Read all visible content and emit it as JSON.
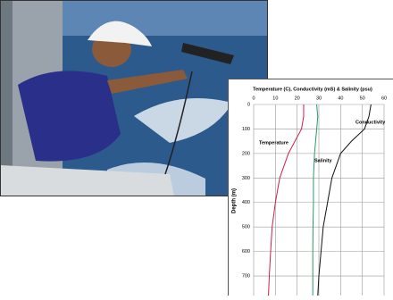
{
  "chart_data": {
    "type": "line",
    "title": "Temperature (C), Conductivity (mS) & Salinity (psu)",
    "y_label": "Depth (m)",
    "depth": [
      0,
      50,
      100,
      150,
      200,
      300,
      400,
      500,
      600,
      700,
      780
    ],
    "series": [
      {
        "name": "Temperature",
        "color": "#d0204a",
        "values": [
          23,
          23,
          22,
          19,
          16,
          12,
          10,
          8.5,
          7.8,
          7.2,
          6.8
        ]
      },
      {
        "name": "Salinity",
        "color": "#2a9a6a",
        "values": [
          29,
          29.5,
          29,
          28.5,
          28,
          27.5,
          27.5,
          27.3,
          27.2,
          27.2,
          27.2
        ]
      },
      {
        "name": "Conductivity",
        "color": "#111111",
        "values": [
          54,
          53,
          51,
          45,
          40,
          36,
          34,
          32,
          31,
          30,
          29.5
        ]
      }
    ],
    "xlim": [
      0,
      60
    ],
    "xticks": [
      0,
      10,
      20,
      30,
      40,
      50,
      60
    ],
    "ylim": [
      0,
      780
    ],
    "yticks": [
      0,
      100,
      200,
      300,
      400,
      500,
      600,
      700
    ],
    "y_inverted": true,
    "grid": true
  }
}
